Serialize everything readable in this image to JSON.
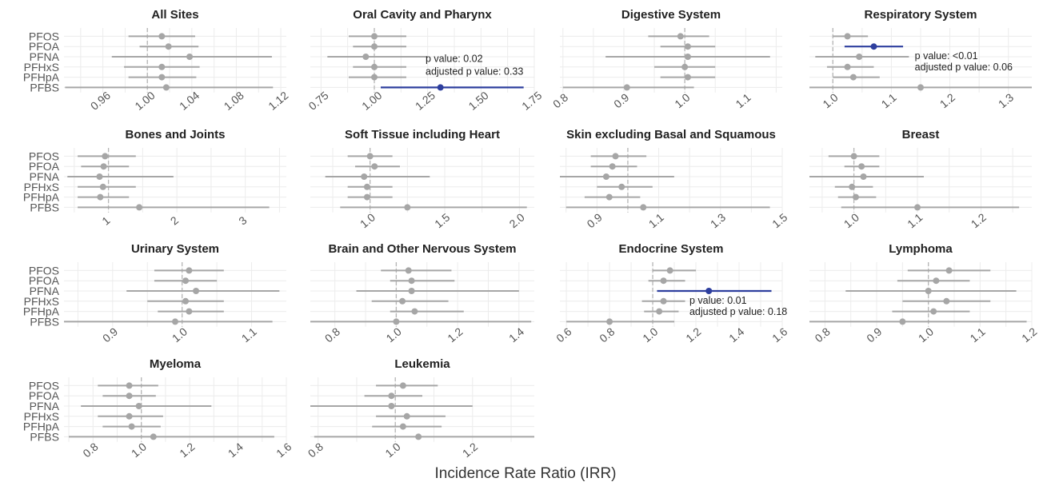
{
  "figure": {
    "xlabel": "Incidence Rate Ratio (IRR)",
    "row_labels": [
      "PFOS",
      "PFOA",
      "PFNA",
      "PFHxS",
      "PFHpA",
      "PFBS"
    ],
    "colors": {
      "default": "#a6a6a6",
      "highlight": "#2e3f9e",
      "grid": "#ececec",
      "ref": "#b5b5b5",
      "text": "#555555"
    }
  },
  "chart_data": [
    {
      "type": "forest",
      "title": "All Sites",
      "xlim": [
        0.925,
        1.125
      ],
      "ticks": [
        "0.96",
        "1.00",
        "1.04",
        "1.08",
        "1.12"
      ],
      "points": [
        {
          "label": "PFOS",
          "est": 1.013,
          "lo": 0.983,
          "hi": 1.043
        },
        {
          "label": "PFOA",
          "est": 1.019,
          "lo": 0.993,
          "hi": 1.046
        },
        {
          "label": "PFNA",
          "est": 1.038,
          "lo": 0.968,
          "hi": 1.112
        },
        {
          "label": "PFHxS",
          "est": 1.013,
          "lo": 0.979,
          "hi": 1.047
        },
        {
          "label": "PFHpA",
          "est": 1.013,
          "lo": 0.983,
          "hi": 1.044
        },
        {
          "label": "PFBS",
          "est": 1.017,
          "lo": 0.926,
          "hi": 1.113
        }
      ]
    },
    {
      "type": "forest",
      "title": "Oral Cavity and Pharynx",
      "xlim": [
        0.7,
        1.75
      ],
      "ticks": [
        "0.75",
        "1.00",
        "1.25",
        "1.50",
        "1.75"
      ],
      "points": [
        {
          "label": "PFOS",
          "est": 1.0,
          "lo": 0.88,
          "hi": 1.15
        },
        {
          "label": "PFOA",
          "est": 1.0,
          "lo": 0.9,
          "hi": 1.15
        },
        {
          "label": "PFNA",
          "est": 0.96,
          "lo": 0.78,
          "hi": 1.25
        },
        {
          "label": "PFHxS",
          "est": 1.0,
          "lo": 0.9,
          "hi": 1.15
        },
        {
          "label": "PFHpA",
          "est": 1.0,
          "lo": 0.88,
          "hi": 1.15
        },
        {
          "label": "PFBS",
          "est": 1.31,
          "lo": 1.03,
          "hi": 1.7,
          "highlight": true
        }
      ],
      "annotation": {
        "lines": [
          "p value: 0.02",
          "adjusted p value: 0.33"
        ],
        "at_x": 1.24
      }
    },
    {
      "type": "forest",
      "title": "Digestive System",
      "xlim": [
        0.795,
        1.16
      ],
      "ticks": [
        "0.8",
        "0.9",
        "1.0",
        "1.1"
      ],
      "points": [
        {
          "label": "PFOS",
          "est": 0.993,
          "lo": 0.94,
          "hi": 1.04
        },
        {
          "label": "PFOA",
          "est": 1.005,
          "lo": 0.96,
          "hi": 1.05
        },
        {
          "label": "PFNA",
          "est": 1.005,
          "lo": 0.87,
          "hi": 1.14
        },
        {
          "label": "PFHxS",
          "est": 1.0,
          "lo": 0.95,
          "hi": 1.05
        },
        {
          "label": "PFHpA",
          "est": 1.005,
          "lo": 0.96,
          "hi": 1.05
        },
        {
          "label": "PFBS",
          "est": 0.905,
          "lo": 0.8,
          "hi": 1.015
        }
      ]
    },
    {
      "type": "forest",
      "title": "Respiratory System",
      "xlim": [
        0.96,
        1.34
      ],
      "ticks": [
        "1.0",
        "1.1",
        "1.2",
        "1.3"
      ],
      "points": [
        {
          "label": "PFOS",
          "est": 1.025,
          "lo": 1.0,
          "hi": 1.06
        },
        {
          "label": "PFOA",
          "est": 1.07,
          "lo": 1.02,
          "hi": 1.12,
          "highlight": true
        },
        {
          "label": "PFNA",
          "est": 1.045,
          "lo": 0.97,
          "hi": 1.13
        },
        {
          "label": "PFHxS",
          "est": 1.025,
          "lo": 0.99,
          "hi": 1.07
        },
        {
          "label": "PFHpA",
          "est": 1.035,
          "lo": 1.0,
          "hi": 1.08
        },
        {
          "label": "PFBS",
          "est": 1.15,
          "lo": 0.96,
          "hi": 1.34
        }
      ],
      "annotation": {
        "lines": [
          "p value: <0.01",
          "adjusted p value: 0.06"
        ],
        "at_x": 1.14
      }
    },
    {
      "type": "forest",
      "title": "Bones and Joints",
      "xlim": [
        0.35,
        3.6
      ],
      "ticks": [
        "1",
        "2",
        "3"
      ],
      "points": [
        {
          "label": "PFOS",
          "est": 0.95,
          "lo": 0.55,
          "hi": 1.4
        },
        {
          "label": "PFOA",
          "est": 0.93,
          "lo": 0.6,
          "hi": 1.3
        },
        {
          "label": "PFNA",
          "est": 0.87,
          "lo": 0.4,
          "hi": 1.95
        },
        {
          "label": "PFHxS",
          "est": 0.92,
          "lo": 0.55,
          "hi": 1.4
        },
        {
          "label": "PFHpA",
          "est": 0.88,
          "lo": 0.55,
          "hi": 1.3
        },
        {
          "label": "PFBS",
          "est": 1.45,
          "lo": 0.55,
          "hi": 3.35
        }
      ]
    },
    {
      "type": "forest",
      "title": "Soft Tissue including Heart",
      "xlim": [
        0.6,
        2.1
      ],
      "ticks": [
        "1.0",
        "1.5",
        "2.0"
      ],
      "points": [
        {
          "label": "PFOS",
          "est": 1.0,
          "lo": 0.85,
          "hi": 1.15
        },
        {
          "label": "PFOA",
          "est": 1.03,
          "lo": 0.9,
          "hi": 1.2
        },
        {
          "label": "PFNA",
          "est": 0.96,
          "lo": 0.7,
          "hi": 1.4
        },
        {
          "label": "PFHxS",
          "est": 0.98,
          "lo": 0.85,
          "hi": 1.15
        },
        {
          "label": "PFHpA",
          "est": 0.98,
          "lo": 0.85,
          "hi": 1.15
        },
        {
          "label": "PFBS",
          "est": 1.25,
          "lo": 0.8,
          "hi": 2.05
        }
      ]
    },
    {
      "type": "forest",
      "title": "Skin excluding Basal and Squamous",
      "xlim": [
        0.78,
        1.5
      ],
      "ticks": [
        "0.9",
        "1.1",
        "1.3",
        "1.5"
      ],
      "points": [
        {
          "label": "PFOS",
          "est": 0.96,
          "lo": 0.88,
          "hi": 1.06
        },
        {
          "label": "PFOA",
          "est": 0.95,
          "lo": 0.88,
          "hi": 1.03
        },
        {
          "label": "PFNA",
          "est": 0.93,
          "lo": 0.78,
          "hi": 1.15
        },
        {
          "label": "PFHxS",
          "est": 0.98,
          "lo": 0.9,
          "hi": 1.08
        },
        {
          "label": "PFHpA",
          "est": 0.94,
          "lo": 0.86,
          "hi": 1.04
        },
        {
          "label": "PFBS",
          "est": 1.05,
          "lo": 0.8,
          "hi": 1.46
        }
      ]
    },
    {
      "type": "forest",
      "title": "Breast",
      "xlim": [
        0.93,
        1.28
      ],
      "ticks": [
        "1.0",
        "1.1",
        "1.2"
      ],
      "points": [
        {
          "label": "PFOS",
          "est": 1.0,
          "lo": 0.96,
          "hi": 1.04
        },
        {
          "label": "PFOA",
          "est": 1.012,
          "lo": 0.985,
          "hi": 1.04
        },
        {
          "label": "PFNA",
          "est": 1.015,
          "lo": 0.93,
          "hi": 1.11
        },
        {
          "label": "PFHxS",
          "est": 0.997,
          "lo": 0.97,
          "hi": 1.03
        },
        {
          "label": "PFHpA",
          "est": 1.003,
          "lo": 0.975,
          "hi": 1.035
        },
        {
          "label": "PFBS",
          "est": 1.1,
          "lo": 0.98,
          "hi": 1.26
        }
      ]
    },
    {
      "type": "forest",
      "title": "Urinary System",
      "xlim": [
        0.83,
        1.15
      ],
      "ticks": [
        "0.9",
        "1.0",
        "1.1"
      ],
      "points": [
        {
          "label": "PFOS",
          "est": 1.01,
          "lo": 0.96,
          "hi": 1.06
        },
        {
          "label": "PFOA",
          "est": 1.005,
          "lo": 0.96,
          "hi": 1.05
        },
        {
          "label": "PFNA",
          "est": 1.02,
          "lo": 0.92,
          "hi": 1.14
        },
        {
          "label": "PFHxS",
          "est": 1.005,
          "lo": 0.95,
          "hi": 1.06
        },
        {
          "label": "PFHpA",
          "est": 1.01,
          "lo": 0.965,
          "hi": 1.06
        },
        {
          "label": "PFBS",
          "est": 0.99,
          "lo": 0.83,
          "hi": 1.13
        }
      ]
    },
    {
      "type": "forest",
      "title": "Brain and Other Nervous System",
      "xlim": [
        0.72,
        1.45
      ],
      "ticks": [
        "0.8",
        "1.0",
        "1.2",
        "1.4"
      ],
      "points": [
        {
          "label": "PFOS",
          "est": 1.04,
          "lo": 0.95,
          "hi": 1.18
        },
        {
          "label": "PFOA",
          "est": 1.05,
          "lo": 0.98,
          "hi": 1.19
        },
        {
          "label": "PFNA",
          "est": 1.05,
          "lo": 0.87,
          "hi": 1.4
        },
        {
          "label": "PFHxS",
          "est": 1.02,
          "lo": 0.92,
          "hi": 1.17
        },
        {
          "label": "PFHpA",
          "est": 1.06,
          "lo": 0.98,
          "hi": 1.22
        },
        {
          "label": "PFBS",
          "est": 1.0,
          "lo": 0.72,
          "hi": 1.44
        }
      ]
    },
    {
      "type": "forest",
      "title": "Endocrine System",
      "xlim": [
        0.57,
        1.6
      ],
      "ticks": [
        "0.6",
        "0.8",
        "1.0",
        "1.2",
        "1.4",
        "1.6"
      ],
      "points": [
        {
          "label": "PFOS",
          "est": 1.08,
          "lo": 1.0,
          "hi": 1.2
        },
        {
          "label": "PFOA",
          "est": 1.05,
          "lo": 0.98,
          "hi": 1.15
        },
        {
          "label": "PFNA",
          "est": 1.26,
          "lo": 1.02,
          "hi": 1.55,
          "highlight": true
        },
        {
          "label": "PFHxS",
          "est": 1.05,
          "lo": 0.95,
          "hi": 1.15
        },
        {
          "label": "PFHpA",
          "est": 1.03,
          "lo": 0.96,
          "hi": 1.12
        },
        {
          "label": "PFBS",
          "est": 0.8,
          "lo": 0.6,
          "hi": 1.1
        }
      ],
      "annotation": {
        "lines": [
          "p value: 0.01",
          "adjusted p value: 0.18"
        ],
        "at_x": 1.17
      }
    },
    {
      "type": "forest",
      "title": "Lymphoma",
      "xlim": [
        0.77,
        1.2
      ],
      "ticks": [
        "0.8",
        "0.9",
        "1.0",
        "1.1",
        "1.2"
      ],
      "points": [
        {
          "label": "PFOS",
          "est": 1.04,
          "lo": 0.96,
          "hi": 1.12
        },
        {
          "label": "PFOA",
          "est": 1.015,
          "lo": 0.94,
          "hi": 1.08
        },
        {
          "label": "PFNA",
          "est": 1.0,
          "lo": 0.84,
          "hi": 1.17
        },
        {
          "label": "PFHxS",
          "est": 1.035,
          "lo": 0.95,
          "hi": 1.12
        },
        {
          "label": "PFHpA",
          "est": 1.01,
          "lo": 0.93,
          "hi": 1.08
        },
        {
          "label": "PFBS",
          "est": 0.95,
          "lo": 0.77,
          "hi": 1.19
        }
      ]
    },
    {
      "type": "forest",
      "title": "Myeloma",
      "xlim": [
        0.68,
        1.6
      ],
      "ticks": [
        "0.8",
        "1.0",
        "1.2",
        "1.4",
        "1.6"
      ],
      "points": [
        {
          "label": "PFOS",
          "est": 0.95,
          "lo": 0.82,
          "hi": 1.07
        },
        {
          "label": "PFOA",
          "est": 0.95,
          "lo": 0.84,
          "hi": 1.06
        },
        {
          "label": "PFNA",
          "est": 0.99,
          "lo": 0.75,
          "hi": 1.29
        },
        {
          "label": "PFHxS",
          "est": 0.95,
          "lo": 0.82,
          "hi": 1.09
        },
        {
          "label": "PFHpA",
          "est": 0.96,
          "lo": 0.84,
          "hi": 1.08
        },
        {
          "label": "PFBS",
          "est": 1.05,
          "lo": 0.7,
          "hi": 1.55
        }
      ]
    },
    {
      "type": "forest",
      "title": "Leukemia",
      "xlim": [
        0.78,
        1.36
      ],
      "ticks": [
        "0.8",
        "1.0",
        "1.2"
      ],
      "points": [
        {
          "label": "PFOS",
          "est": 1.02,
          "lo": 0.95,
          "hi": 1.11
        },
        {
          "label": "PFOA",
          "est": 0.99,
          "lo": 0.92,
          "hi": 1.07
        },
        {
          "label": "PFNA",
          "est": 0.99,
          "lo": 0.78,
          "hi": 1.2
        },
        {
          "label": "PFHxS",
          "est": 1.03,
          "lo": 0.95,
          "hi": 1.13
        },
        {
          "label": "PFHpA",
          "est": 1.02,
          "lo": 0.94,
          "hi": 1.12
        },
        {
          "label": "PFBS",
          "est": 1.06,
          "lo": 0.79,
          "hi": 1.36
        }
      ]
    }
  ]
}
